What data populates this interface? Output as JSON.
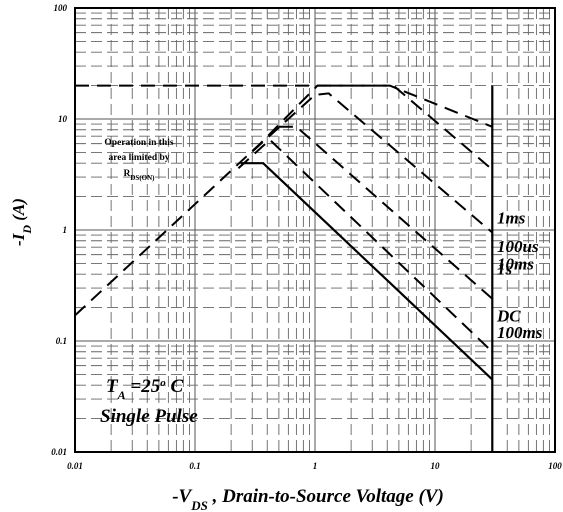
{
  "chart_data": {
    "type": "line",
    "x_scale": "log",
    "y_scale": "log",
    "xlim": [
      0.01,
      100
    ],
    "ylim": [
      0.01,
      100
    ],
    "grid": true,
    "x_ticks": [
      "0.01",
      "0.1",
      "1",
      "10",
      "100"
    ],
    "y_ticks": [
      "100",
      "10",
      "1",
      "0.1",
      "0.01"
    ],
    "ylabel": {
      "pre": "-I",
      "sub": "D",
      "post": " (A)"
    },
    "xlabel": {
      "pre": "-V",
      "sub": "DS",
      "post": " , Drain-to-Source Voltage (V)"
    },
    "annotation": {
      "line1": "Operation in this",
      "line2": "area limited by",
      "line3_main": "R",
      "line3_sub": "DS(ON)"
    },
    "conditions": {
      "ta_pre": "T",
      "ta_sub": "A",
      "ta_post": " =25",
      "ta_sup": "o",
      "ta_unit": " C",
      "pulse": "Single  Pulse"
    },
    "series": [
      {
        "name": "RDS(ON) limit",
        "style": "dashed",
        "points": [
          [
            0.01,
            0.17
          ],
          [
            0.35,
            6.0
          ],
          [
            1.05,
            20
          ],
          [
            1.3,
            20
          ]
        ]
      },
      {
        "name": "100us",
        "style": "dashed",
        "points": [
          [
            0.01,
            20
          ],
          [
            4.2,
            20
          ],
          [
            30,
            8.5
          ]
        ],
        "label": "100us"
      },
      {
        "name": "1ms",
        "style": "dashed",
        "points": [
          [
            1.3,
            20
          ],
          [
            4.5,
            20
          ],
          [
            30,
            3.5
          ]
        ],
        "label": "1ms"
      },
      {
        "name": "10ms",
        "style": "dashed",
        "points": [
          [
            0.3,
            5.1
          ],
          [
            1.0,
            16.5
          ],
          [
            1.3,
            17
          ],
          [
            30,
            0.95
          ]
        ],
        "label": "10ms"
      },
      {
        "name": "100ms",
        "style": "dashed",
        "points": [
          [
            0.5,
            8.5
          ],
          [
            0.7,
            8.5
          ],
          [
            30,
            0.24
          ]
        ],
        "label": "100ms"
      },
      {
        "name": "1s",
        "style": "dashed",
        "points": [
          [
            0.23,
            3.6
          ],
          [
            0.42,
            6.5
          ],
          [
            30,
            0.08
          ]
        ],
        "label": "1s"
      },
      {
        "name": "DC",
        "style": "solid",
        "points": [
          [
            0.24,
            4.0
          ],
          [
            0.37,
            4.0
          ],
          [
            30,
            0.045
          ],
          [
            30,
            20
          ],
          [
            30,
            0.01
          ]
        ],
        "label": "DC"
      }
    ]
  }
}
